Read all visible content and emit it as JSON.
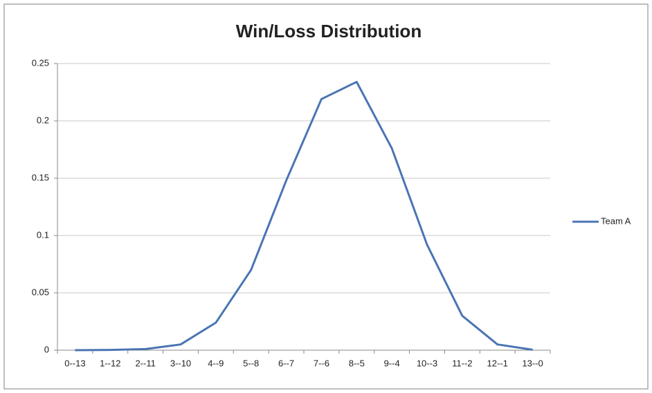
{
  "chart_data": {
    "type": "line",
    "title": "Win/Loss Distribution",
    "categories": [
      "0--13",
      "1--12",
      "2--11",
      "3--10",
      "4--9",
      "5--8",
      "6--7",
      "7--6",
      "8--5",
      "9--4",
      "10--3",
      "11--2",
      "12--1",
      "13--0"
    ],
    "series": [
      {
        "name": "Team A",
        "color": "#4a74b4",
        "values": [
          0,
          0.0002,
          0.001,
          0.005,
          0.024,
          0.07,
          0.148,
          0.219,
          0.234,
          0.176,
          0.092,
          0.03,
          0.005,
          0.0004
        ]
      }
    ],
    "ylim": [
      0,
      0.25
    ],
    "yticks": [
      0,
      0.05,
      0.1,
      0.15,
      0.2,
      0.25
    ],
    "grid": true,
    "legend": "right"
  }
}
